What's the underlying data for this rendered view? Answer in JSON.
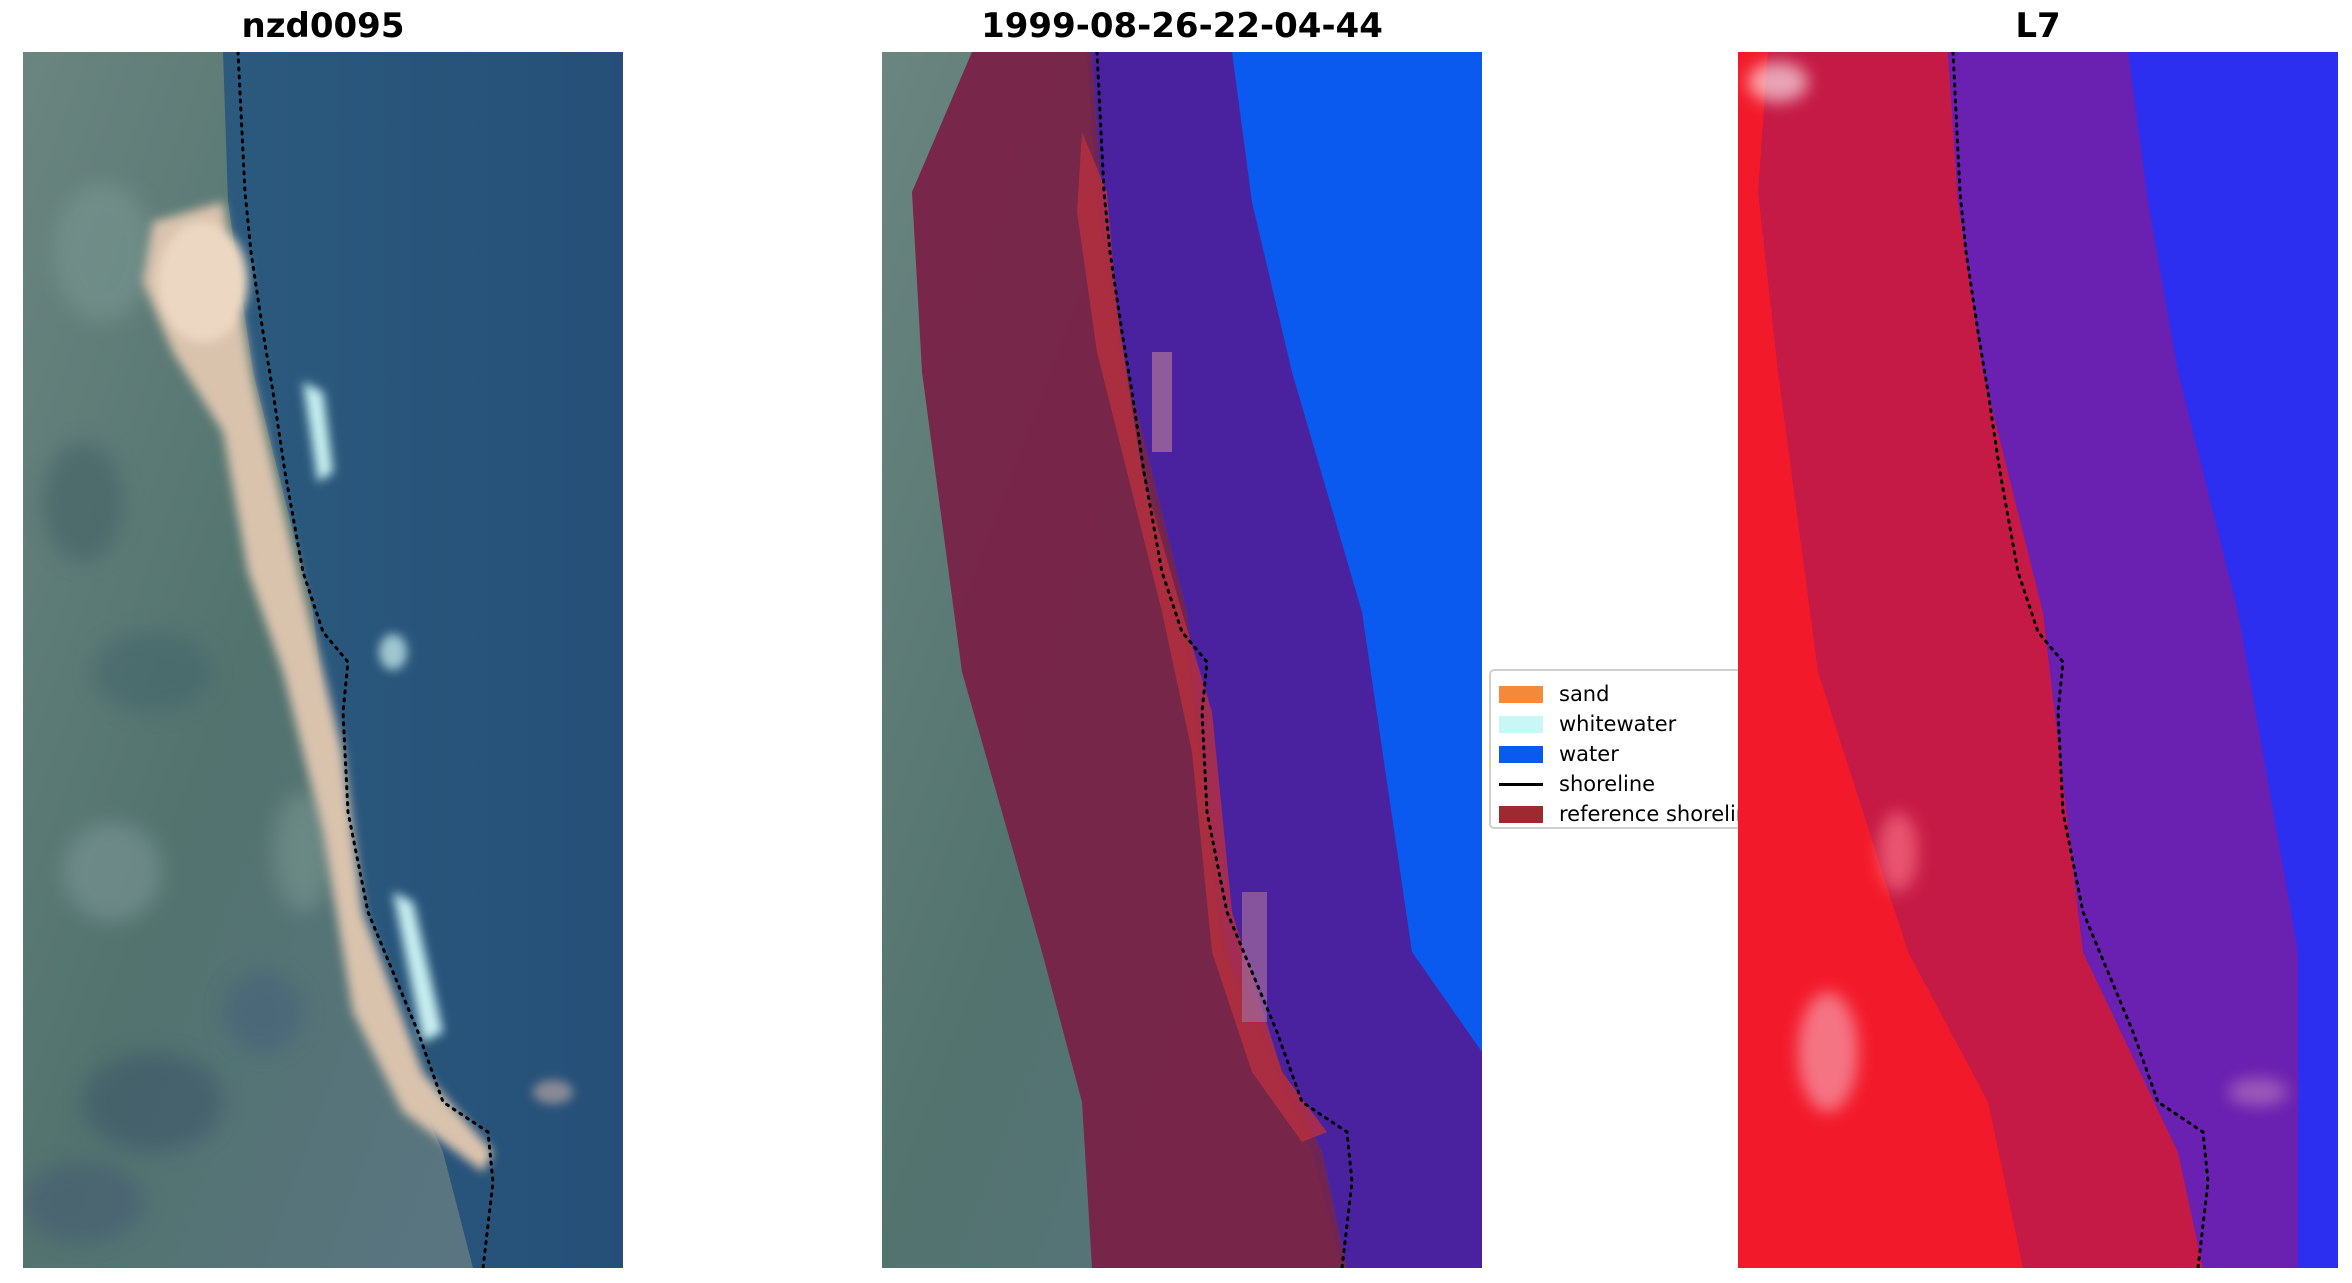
{
  "panels": [
    {
      "title": "nzd0095"
    },
    {
      "title": "1999-08-26-22-04-44"
    },
    {
      "title": "L7"
    }
  ],
  "legend": {
    "items": [
      {
        "label": "sand",
        "color": "#f5893a"
      },
      {
        "label": "whitewater",
        "color": "#c8f7f5"
      },
      {
        "label": "water",
        "color": "#0a5af0"
      },
      {
        "label": "shoreline",
        "color": "#000000",
        "kind": "line"
      },
      {
        "label": "reference shoreline buffer",
        "color": "#9e2a2f"
      }
    ]
  },
  "colors": {
    "ocean": "#2e5f86",
    "land": "#5f7f7a",
    "beach": "#e2cdb8",
    "whitewater_class": "#c8f7f5",
    "water_class": "#0a5af0",
    "buffer_overlay": "#7a1f45",
    "water_buffer": "#4a22a0",
    "index_land": "#f21a2a",
    "index_water": "#2d2ff0"
  }
}
